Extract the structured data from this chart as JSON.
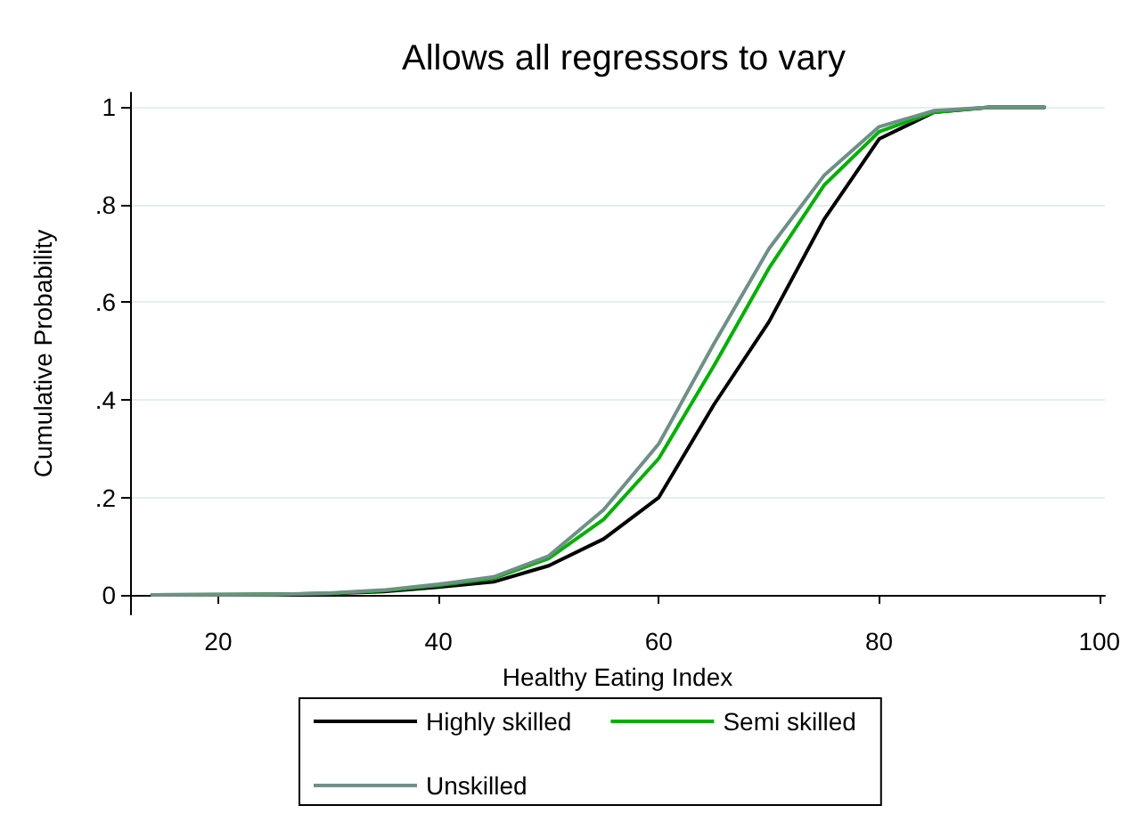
{
  "chart_data": {
    "type": "line",
    "title": "Allows all regressors to vary",
    "xlabel": "Healthy Eating Index",
    "ylabel": "Cumulative Probability",
    "x": [
      14,
      25,
      30,
      35,
      40,
      45,
      50,
      55,
      60,
      65,
      70,
      75,
      80,
      85,
      90,
      95
    ],
    "series": [
      {
        "name": "Highly skilled",
        "color": "#000000",
        "values": [
          0,
          0.001,
          0.003,
          0.007,
          0.016,
          0.027,
          0.06,
          0.115,
          0.2,
          0.39,
          0.56,
          0.77,
          0.935,
          0.99,
          1,
          1
        ]
      },
      {
        "name": "Semi skilled",
        "color": "#00b000",
        "values": [
          0,
          0.001,
          0.003,
          0.009,
          0.02,
          0.034,
          0.075,
          0.155,
          0.28,
          0.47,
          0.67,
          0.84,
          0.95,
          0.99,
          1,
          1
        ]
      },
      {
        "name": "Unskilled",
        "color": "#6f8f88",
        "values": [
          0,
          0.001,
          0.004,
          0.01,
          0.022,
          0.037,
          0.08,
          0.175,
          0.31,
          0.515,
          0.71,
          0.86,
          0.96,
          0.993,
          1,
          1
        ]
      }
    ],
    "xlim": [
      12,
      100.5
    ],
    "xticks": [
      20,
      40,
      60,
      80,
      100
    ],
    "ylim": [
      -0.04,
      1.03
    ],
    "yticks": [
      0,
      {
        "value": 0.2,
        "label": ".2"
      },
      {
        "value": 0.4,
        "label": ".4"
      },
      {
        "value": 0.6,
        "label": ".6"
      },
      {
        "value": 0.8,
        "label": ".8"
      },
      1
    ],
    "grid": "y",
    "legend": "bottom",
    "line_style": "solid",
    "marker": "none"
  }
}
